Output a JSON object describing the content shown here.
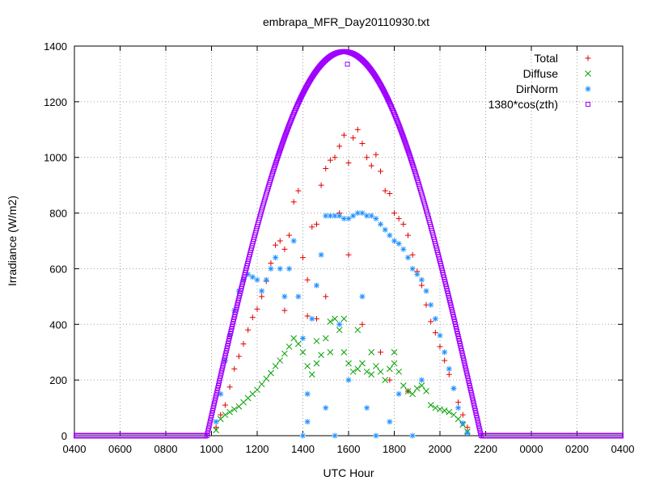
{
  "chart_data": {
    "type": "scatter",
    "title": "embrapa_MFR_Day20110930.txt",
    "xlabel": "UTC Hour",
    "ylabel": "Irradiance (W/m2)",
    "x_tick_labels": [
      "0400",
      "0600",
      "0800",
      "1000",
      "1200",
      "1400",
      "1600",
      "1800",
      "2000",
      "2200",
      "0000",
      "0200",
      "0400"
    ],
    "y_tick_labels": [
      "0",
      "200",
      "400",
      "600",
      "800",
      "1000",
      "1200",
      "1400"
    ],
    "x_hours_per_tick": 2,
    "x_start_hour": 4,
    "x_range_hours": [
      4,
      28
    ],
    "ylim": [
      0,
      1400
    ],
    "grid": true,
    "legend_position": "top-right",
    "series": [
      {
        "name": "Total",
        "marker": "plus",
        "color": "#e00000",
        "points": [
          [
            10.2,
            30
          ],
          [
            10.4,
            75
          ],
          [
            10.6,
            110
          ],
          [
            10.8,
            175
          ],
          [
            11.0,
            240
          ],
          [
            11.2,
            285
          ],
          [
            11.4,
            330
          ],
          [
            11.6,
            380
          ],
          [
            11.8,
            425
          ],
          [
            12.0,
            455
          ],
          [
            12.2,
            500
          ],
          [
            12.4,
            555
          ],
          [
            12.6,
            620
          ],
          [
            12.8,
            685
          ],
          [
            13.0,
            700
          ],
          [
            13.2,
            670
          ],
          [
            13.4,
            720
          ],
          [
            13.6,
            840
          ],
          [
            13.8,
            880
          ],
          [
            14.0,
            640
          ],
          [
            14.2,
            560
          ],
          [
            14.4,
            750
          ],
          [
            14.6,
            760
          ],
          [
            14.8,
            900
          ],
          [
            15.0,
            960
          ],
          [
            15.2,
            990
          ],
          [
            15.4,
            1000
          ],
          [
            15.6,
            1040
          ],
          [
            15.8,
            1080
          ],
          [
            16.0,
            980
          ],
          [
            16.2,
            1070
          ],
          [
            16.4,
            1100
          ],
          [
            16.6,
            1050
          ],
          [
            16.8,
            1000
          ],
          [
            17.0,
            970
          ],
          [
            17.2,
            1010
          ],
          [
            17.4,
            950
          ],
          [
            17.6,
            880
          ],
          [
            17.8,
            870
          ],
          [
            18.0,
            800
          ],
          [
            18.2,
            780
          ],
          [
            18.4,
            760
          ],
          [
            18.6,
            720
          ],
          [
            18.8,
            650
          ],
          [
            19.0,
            590
          ],
          [
            19.2,
            540
          ],
          [
            19.4,
            470
          ],
          [
            19.6,
            410
          ],
          [
            19.8,
            370
          ],
          [
            20.0,
            320
          ],
          [
            20.2,
            270
          ],
          [
            20.4,
            220
          ],
          [
            20.6,
            170
          ],
          [
            20.8,
            120
          ],
          [
            21.0,
            75
          ],
          [
            21.2,
            30
          ],
          [
            14.6,
            420
          ],
          [
            15.0,
            500
          ],
          [
            15.6,
            800
          ],
          [
            16.0,
            650
          ],
          [
            16.6,
            400
          ],
          [
            17.4,
            300
          ],
          [
            17.8,
            200
          ],
          [
            18.6,
            160
          ],
          [
            13.2,
            450
          ],
          [
            14.2,
            430
          ]
        ]
      },
      {
        "name": "Diffuse",
        "marker": "cross",
        "color": "#00a000",
        "points": [
          [
            10.2,
            20
          ],
          [
            10.4,
            60
          ],
          [
            10.6,
            75
          ],
          [
            10.8,
            85
          ],
          [
            11.0,
            95
          ],
          [
            11.2,
            105
          ],
          [
            11.4,
            120
          ],
          [
            11.6,
            135
          ],
          [
            11.8,
            150
          ],
          [
            12.0,
            165
          ],
          [
            12.2,
            185
          ],
          [
            12.4,
            205
          ],
          [
            12.6,
            225
          ],
          [
            12.8,
            250
          ],
          [
            13.0,
            270
          ],
          [
            13.2,
            295
          ],
          [
            13.4,
            320
          ],
          [
            13.6,
            350
          ],
          [
            13.8,
            330
          ],
          [
            14.0,
            300
          ],
          [
            14.2,
            250
          ],
          [
            14.4,
            220
          ],
          [
            14.6,
            260
          ],
          [
            14.8,
            290
          ],
          [
            15.0,
            350
          ],
          [
            15.2,
            410
          ],
          [
            15.4,
            420
          ],
          [
            15.6,
            380
          ],
          [
            15.8,
            300
          ],
          [
            16.0,
            260
          ],
          [
            16.2,
            230
          ],
          [
            16.4,
            240
          ],
          [
            16.6,
            260
          ],
          [
            16.8,
            230
          ],
          [
            17.0,
            220
          ],
          [
            17.2,
            250
          ],
          [
            17.4,
            230
          ],
          [
            17.6,
            200
          ],
          [
            17.8,
            240
          ],
          [
            18.0,
            260
          ],
          [
            18.2,
            230
          ],
          [
            18.4,
            180
          ],
          [
            18.6,
            160
          ],
          [
            18.8,
            150
          ],
          [
            19.0,
            170
          ],
          [
            19.2,
            180
          ],
          [
            19.4,
            160
          ],
          [
            19.6,
            110
          ],
          [
            19.8,
            100
          ],
          [
            20.0,
            95
          ],
          [
            20.2,
            90
          ],
          [
            20.4,
            85
          ],
          [
            20.6,
            75
          ],
          [
            20.8,
            60
          ],
          [
            21.0,
            40
          ],
          [
            21.2,
            15
          ],
          [
            15.2,
            300
          ],
          [
            15.8,
            420
          ],
          [
            16.4,
            380
          ],
          [
            14.6,
            340
          ],
          [
            17.0,
            300
          ],
          [
            18.0,
            300
          ]
        ]
      },
      {
        "name": "DirNorm",
        "marker": "star",
        "color": "#1e90ff",
        "points": [
          [
            10.2,
            50
          ],
          [
            10.4,
            150
          ],
          [
            10.6,
            270
          ],
          [
            10.8,
            360
          ],
          [
            11.0,
            450
          ],
          [
            11.2,
            520
          ],
          [
            11.4,
            560
          ],
          [
            11.6,
            580
          ],
          [
            11.8,
            570
          ],
          [
            12.0,
            560
          ],
          [
            12.2,
            520
          ],
          [
            12.4,
            560
          ],
          [
            12.6,
            600
          ],
          [
            12.8,
            640
          ],
          [
            13.0,
            600
          ],
          [
            13.2,
            500
          ],
          [
            13.4,
            600
          ],
          [
            13.6,
            700
          ],
          [
            13.8,
            500
          ],
          [
            14.0,
            350
          ],
          [
            14.2,
            150
          ],
          [
            14.4,
            420
          ],
          [
            14.6,
            540
          ],
          [
            14.8,
            650
          ],
          [
            15.0,
            790
          ],
          [
            15.2,
            790
          ],
          [
            15.4,
            790
          ],
          [
            15.6,
            790
          ],
          [
            15.8,
            780
          ],
          [
            16.0,
            780
          ],
          [
            16.2,
            790
          ],
          [
            16.4,
            800
          ],
          [
            16.6,
            800
          ],
          [
            16.8,
            790
          ],
          [
            17.0,
            790
          ],
          [
            17.2,
            780
          ],
          [
            17.4,
            760
          ],
          [
            17.6,
            740
          ],
          [
            17.8,
            720
          ],
          [
            18.0,
            700
          ],
          [
            18.2,
            690
          ],
          [
            18.4,
            670
          ],
          [
            18.6,
            640
          ],
          [
            18.8,
            600
          ],
          [
            19.0,
            580
          ],
          [
            19.2,
            560
          ],
          [
            19.4,
            520
          ],
          [
            19.6,
            470
          ],
          [
            19.8,
            420
          ],
          [
            20.0,
            360
          ],
          [
            20.2,
            300
          ],
          [
            20.4,
            240
          ],
          [
            20.6,
            170
          ],
          [
            20.8,
            100
          ],
          [
            21.0,
            45
          ],
          [
            21.2,
            10
          ],
          [
            14.0,
            0
          ],
          [
            14.2,
            50
          ],
          [
            15.0,
            100
          ],
          [
            15.4,
            0
          ],
          [
            16.0,
            200
          ],
          [
            16.8,
            100
          ],
          [
            17.2,
            0
          ],
          [
            17.8,
            50
          ],
          [
            18.2,
            150
          ],
          [
            18.8,
            0
          ],
          [
            19.2,
            200
          ],
          [
            15.6,
            400
          ],
          [
            16.6,
            500
          ]
        ]
      },
      {
        "name": "1380*cos(zth)",
        "marker": "square",
        "color": "#a000ff",
        "curve": {
          "peak": 1380,
          "peak_hour": 15.8,
          "rise_hour": 9.8,
          "set_hour": 21.8
        },
        "extra_points": [
          [
            15.95,
            1335
          ]
        ]
      }
    ]
  }
}
